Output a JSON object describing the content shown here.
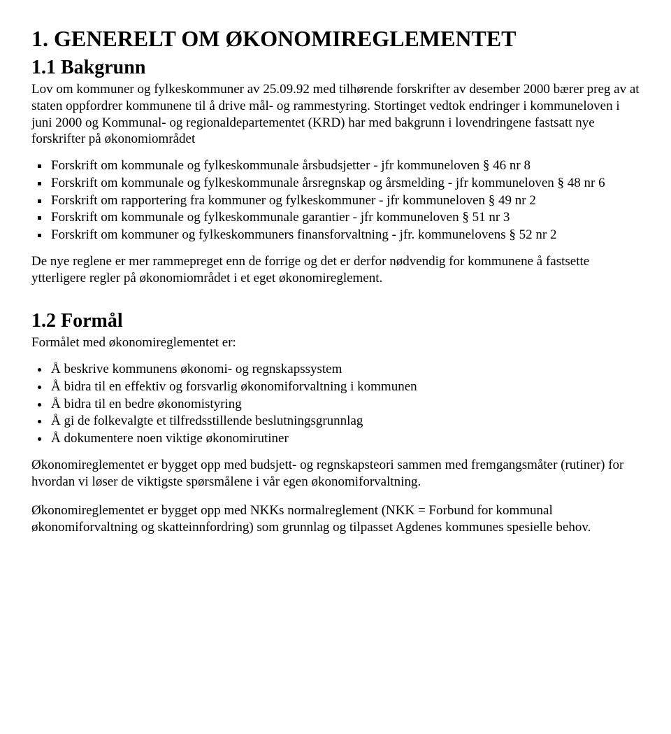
{
  "section1": {
    "heading": "1.   GENERELT OM ØKONOMIREGLEMENTET",
    "sub1": {
      "heading": "1.1   Bakgrunn",
      "intro": "Lov om kommuner og fylkeskommuner av 25.09.92 med tilhørende forskrifter av desember 2000 bærer preg av at staten oppfordrer kommunene til å drive mål- og rammestyring. Stortinget vedtok endringer i kommuneloven i juni 2000 og Kommunal- og regionaldepartementet (KRD) har med bakgrunn i lovendringene fastsatt nye forskrifter på økonomiområdet",
      "bullets": [
        "Forskrift om kommunale og fylkeskommunale årsbudsjetter - jfr kommuneloven § 46 nr 8",
        "Forskrift om kommunale og fylkeskommunale årsregnskap og årsmelding - jfr kommuneloven § 48 nr 6",
        "Forskrift om rapportering fra kommuner og fylkeskommuner - jfr kommuneloven § 49 nr 2",
        "Forskrift om kommunale og fylkeskommunale garantier - jfr kommuneloven § 51 nr 3",
        "Forskrift om kommuner og fylkeskommuners finansforvaltning - jfr. kommunelovens § 52 nr 2"
      ],
      "closing": "De nye reglene er mer rammepreget enn de forrige og det er derfor nødvendig for kommunene å fastsette ytterligere regler på økonomiområdet i et eget økonomireglement."
    },
    "sub2": {
      "heading": "1.2   Formål",
      "intro": "Formålet med økonomireglementet er:",
      "bullets": [
        "Å beskrive kommunens økonomi- og regnskapssystem",
        "Å bidra til en effektiv og forsvarlig økonomiforvaltning i kommunen",
        "Å bidra til en bedre økonomistyring",
        "Å gi de folkevalgte et tilfredsstillende beslutningsgrunnlag",
        "Å dokumentere noen viktige økonomirutiner"
      ],
      "para2": "Økonomireglementet er bygget opp med budsjett- og regnskapsteori sammen med fremgangsmåter (rutiner) for hvordan vi løser de viktigste spørsmålene i vår egen økonomiforvaltning.",
      "para3": "Økonomireglementet er bygget opp med NKKs normalreglement (NKK = Forbund for kommunal økonomiforvaltning og skatteinnfordring) som grunnlag og tilpasset Agdenes kommunes spesielle behov."
    }
  }
}
